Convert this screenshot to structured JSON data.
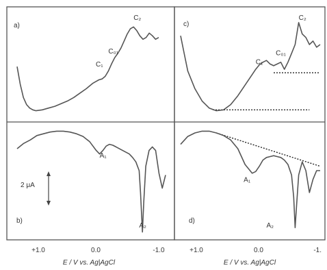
{
  "chart_data": [
    {
      "type": "line",
      "panel_label": "a)",
      "x": [
        1.3,
        1.25,
        1.2,
        1.15,
        1.1,
        1.05,
        1.0,
        0.9,
        0.8,
        0.7,
        0.6,
        0.5,
        0.4,
        0.3,
        0.2,
        0.1,
        0.05,
        0.0,
        -0.05,
        -0.1,
        -0.15,
        -0.2,
        -0.25,
        -0.3,
        -0.35,
        -0.4,
        -0.45,
        -0.5,
        -0.55,
        -0.6,
        -0.65,
        -0.7,
        -0.75,
        -0.8,
        -0.85,
        -0.9,
        -0.95
      ],
      "series": [
        {
          "values": [
            0.55,
            0.35,
            0.2,
            0.12,
            0.08,
            0.06,
            0.05,
            0.06,
            0.08,
            0.1,
            0.13,
            0.16,
            0.2,
            0.25,
            0.3,
            0.36,
            0.38,
            0.4,
            0.41,
            0.44,
            0.5,
            0.58,
            0.65,
            0.7,
            0.76,
            0.84,
            0.92,
            0.98,
            1.0,
            0.96,
            0.9,
            0.86,
            0.88,
            0.93,
            0.9,
            0.86,
            0.88
          ]
        }
      ],
      "annotations": [
        {
          "text": "C₁",
          "x": 0.05,
          "y": 0.55
        },
        {
          "text": "C₀₁",
          "x": -0.15,
          "y": 0.7
        },
        {
          "text": "C₂",
          "x": -0.55,
          "y": 1.08
        }
      ],
      "ylim": [
        0,
        1.15
      ]
    },
    {
      "type": "line",
      "panel_label": "c)",
      "x": [
        1.0,
        0.95,
        0.9,
        0.8,
        0.7,
        0.6,
        0.5,
        0.4,
        0.3,
        0.2,
        0.1,
        0.0,
        -0.05,
        -0.1,
        -0.15,
        -0.2,
        -0.25,
        -0.3,
        -0.35,
        -0.4,
        -0.45,
        -0.5,
        -0.55,
        -0.6,
        -0.65,
        -0.7,
        -0.75,
        -0.8,
        -0.85,
        -0.9,
        -0.95
      ],
      "series": [
        {
          "values": [
            0.9,
            0.7,
            0.5,
            0.3,
            0.16,
            0.08,
            0.05,
            0.06,
            0.12,
            0.22,
            0.34,
            0.46,
            0.52,
            0.57,
            0.6,
            0.62,
            0.58,
            0.56,
            0.58,
            0.6,
            0.52,
            0.6,
            0.7,
            0.8,
            1.05,
            0.92,
            0.88,
            0.8,
            0.84,
            0.77,
            0.8
          ]
        }
      ],
      "baselines": [
        {
          "x": [
            0.55,
            -0.8
          ],
          "y": 0.06
        },
        {
          "x": [
            -0.3,
            -0.95
          ],
          "y": 0.48
        }
      ],
      "annotations": [
        {
          "text": "C₁",
          "x": -0.05,
          "y": 0.58
        },
        {
          "text": "C₀₁",
          "x": -0.33,
          "y": 0.68
        },
        {
          "text": "C₂",
          "x": -0.65,
          "y": 1.08
        }
      ],
      "ylim": [
        0,
        1.15
      ]
    },
    {
      "type": "line",
      "panel_label": "b)",
      "x": [
        1.3,
        1.2,
        1.1,
        1.0,
        0.9,
        0.8,
        0.7,
        0.6,
        0.5,
        0.4,
        0.3,
        0.2,
        0.1,
        0.05,
        0.0,
        -0.05,
        -0.1,
        -0.15,
        -0.2,
        -0.3,
        -0.4,
        -0.45,
        -0.5,
        -0.55,
        -0.57,
        -0.6,
        -0.62,
        -0.65,
        -0.7,
        -0.75,
        -0.8,
        -0.85,
        -0.9,
        -0.95
      ],
      "series": [
        {
          "values": [
            -0.2,
            -0.14,
            -0.1,
            -0.05,
            -0.03,
            -0.01,
            0.0,
            0.0,
            -0.01,
            -0.03,
            -0.06,
            -0.12,
            -0.22,
            -0.26,
            -0.22,
            -0.17,
            -0.15,
            -0.16,
            -0.18,
            -0.22,
            -0.26,
            -0.3,
            -0.35,
            -0.45,
            -0.7,
            -1.15,
            -0.8,
            -0.4,
            -0.22,
            -0.18,
            -0.22,
            -0.48,
            -0.65,
            -0.5
          ]
        }
      ],
      "annotations": [
        {
          "text": "A₁",
          "x": 0.05,
          "y": -0.3
        },
        {
          "text": "A₂",
          "x": -0.55,
          "y": -1.1
        }
      ],
      "scale_bar": {
        "text": "2 μA",
        "x": 1.15
      },
      "xticks": [
        "+1.0",
        "0.0",
        "-1.0"
      ],
      "xlabel": "E / V vs. Ag|AgCl",
      "ylim": [
        -1.2,
        0.05
      ]
    },
    {
      "type": "line",
      "panel_label": "d)",
      "x": [
        1.0,
        0.9,
        0.8,
        0.7,
        0.6,
        0.5,
        0.4,
        0.3,
        0.2,
        0.1,
        0.0,
        -0.05,
        -0.1,
        -0.15,
        -0.2,
        -0.25,
        -0.3,
        -0.35,
        -0.4,
        -0.45,
        -0.5,
        -0.55,
        -0.58,
        -0.6,
        -0.62,
        -0.65,
        -0.7,
        -0.75,
        -0.8,
        -0.85,
        -0.9,
        -0.95
      ],
      "series": [
        {
          "values": [
            -0.15,
            -0.06,
            -0.02,
            0.0,
            0.0,
            -0.02,
            -0.05,
            -0.1,
            -0.2,
            -0.38,
            -0.48,
            -0.46,
            -0.4,
            -0.33,
            -0.3,
            -0.29,
            -0.28,
            -0.29,
            -0.3,
            -0.33,
            -0.38,
            -0.5,
            -0.75,
            -1.1,
            -0.85,
            -0.5,
            -0.35,
            -0.45,
            -0.7,
            -0.55,
            -0.45,
            -0.45
          ]
        }
      ],
      "baselines": [
        {
          "x": [
            0.5,
            -0.95
          ],
          "y_start": -0.02,
          "y_end": -0.4
        }
      ],
      "annotations": [
        {
          "text": "A₁",
          "x": 0.12,
          "y": -0.58
        },
        {
          "text": "A₂",
          "x": -0.2,
          "y": -1.1
        }
      ],
      "xticks": [
        "+1.0",
        "0.0",
        "-1."
      ],
      "xlabel": "E / V vs. Ag|AgCl",
      "ylim": [
        -1.2,
        0.05
      ]
    }
  ]
}
